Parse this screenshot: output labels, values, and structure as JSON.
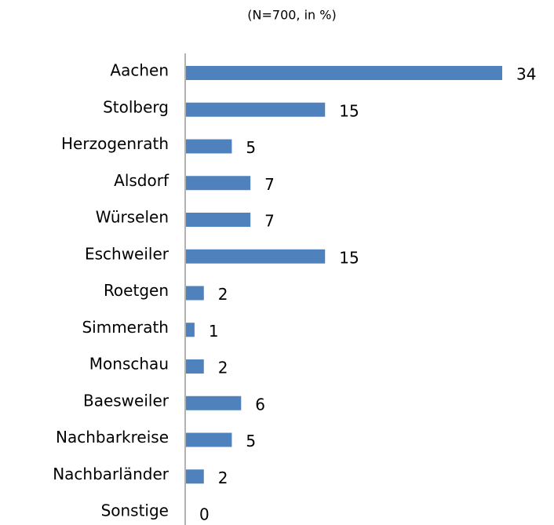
{
  "chart_data": {
    "type": "bar",
    "orientation": "horizontal",
    "subtitle": "(N=700, in %)",
    "categories": [
      "Aachen",
      "Stolberg",
      "Herzogenrath",
      "Alsdorf",
      "Würselen",
      "Eschweiler",
      "Roetgen",
      "Simmerath",
      "Monschau",
      "Baesweiler",
      "Nachbarkreise",
      "Nachbarländer",
      "Sonstige"
    ],
    "values": [
      34,
      15,
      5,
      7,
      7,
      15,
      2,
      1,
      2,
      6,
      5,
      2,
      0
    ],
    "color": "#4f81bd"
  }
}
